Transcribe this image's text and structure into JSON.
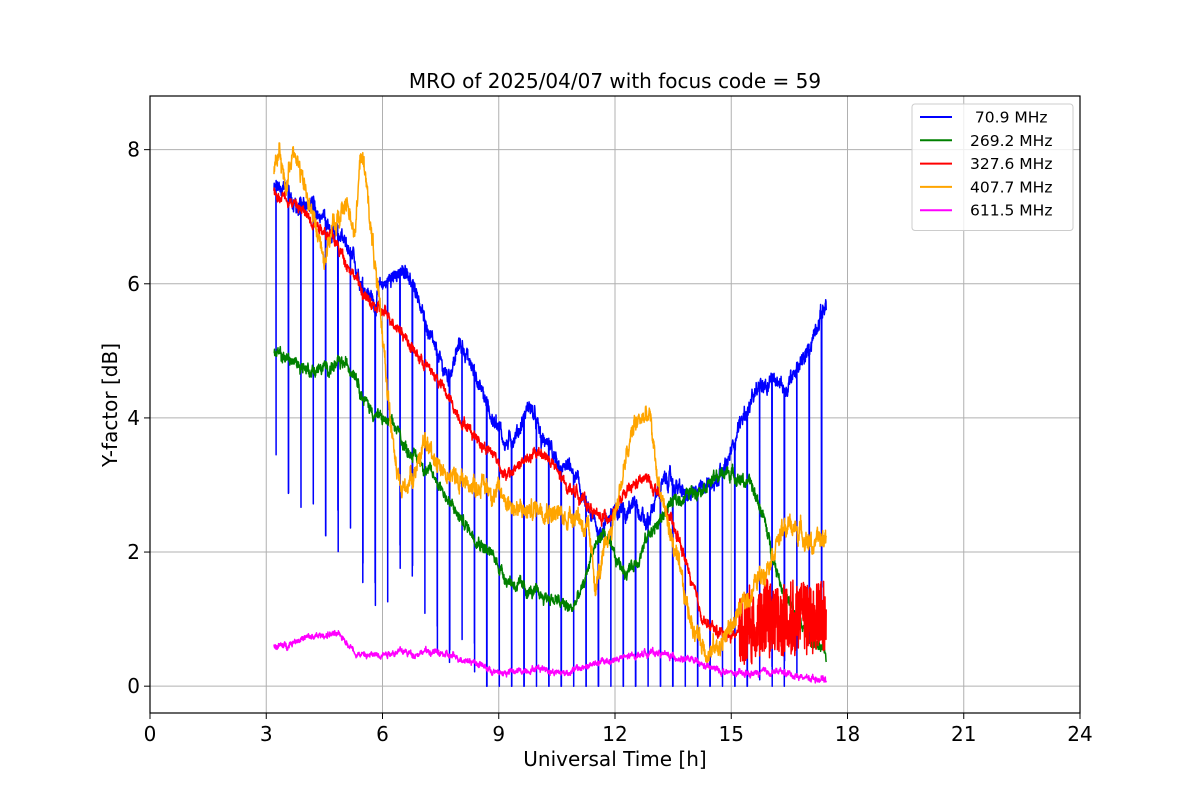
{
  "chart_data": {
    "type": "line",
    "title": "MRO of 2025/04/07 with focus code = 59",
    "xlabel": "Universal Time [h]",
    "ylabel": "Y-factor [dB]",
    "xlim": [
      0,
      24
    ],
    "ylim": [
      -0.4,
      8.8
    ],
    "xticks": [
      0,
      3,
      6,
      9,
      12,
      15,
      18,
      21,
      24
    ],
    "yticks": [
      0,
      2,
      4,
      6,
      8
    ],
    "grid": true,
    "legend_position": "top-right",
    "series": [
      {
        "name": " 70.9 MHz",
        "color": "#0000ff",
        "noise": 0.13,
        "dips": {
          "start": 3.25,
          "period": 0.32,
          "end": 17.45
        },
        "x": [
          3.2,
          3.4,
          3.6,
          3.8,
          4.0,
          4.3,
          4.6,
          4.9,
          5.2,
          5.5,
          5.8,
          6.0,
          6.3,
          6.6,
          6.9,
          7.1,
          7.4,
          7.7,
          8.0,
          8.3,
          8.6,
          8.9,
          9.2,
          9.5,
          9.8,
          10.1,
          10.4,
          10.7,
          11.0,
          11.3,
          11.6,
          11.9,
          12.2,
          12.5,
          12.8,
          13.1,
          13.4,
          13.7,
          14.0,
          14.3,
          14.6,
          14.9,
          15.2,
          15.5,
          15.8,
          16.1,
          16.4,
          16.7,
          17.0,
          17.2,
          17.45
        ],
        "y": [
          7.4,
          7.5,
          7.3,
          7.1,
          7.2,
          7.1,
          6.9,
          6.7,
          6.4,
          6.0,
          5.7,
          6.0,
          6.1,
          6.2,
          5.9,
          5.4,
          4.9,
          4.6,
          5.1,
          4.8,
          4.3,
          3.9,
          3.6,
          3.8,
          4.2,
          3.7,
          3.4,
          3.3,
          3.1,
          2.6,
          2.3,
          2.6,
          2.6,
          2.7,
          2.4,
          2.9,
          3.1,
          2.9,
          2.8,
          3.0,
          3.1,
          3.3,
          3.9,
          4.2,
          4.5,
          4.6,
          4.4,
          4.7,
          5.0,
          5.4,
          5.7
        ]
      },
      {
        "name": "269.2 MHz",
        "color": "#008000",
        "noise": 0.1,
        "x": [
          3.2,
          3.5,
          3.8,
          4.2,
          4.6,
          5.0,
          5.3,
          5.5,
          5.8,
          6.1,
          6.4,
          6.6,
          6.9,
          7.2,
          7.5,
          7.7,
          8.0,
          8.3,
          8.6,
          8.9,
          9.2,
          9.5,
          9.8,
          10.1,
          10.4,
          10.7,
          10.9,
          11.2,
          11.4,
          11.7,
          12.0,
          12.3,
          12.6,
          12.9,
          13.1,
          13.4,
          13.7,
          14.0,
          14.3,
          14.6,
          14.9,
          15.2,
          15.5,
          15.8,
          16.0,
          16.3,
          16.6,
          16.9,
          17.2,
          17.45
        ],
        "y": [
          4.95,
          4.9,
          4.8,
          4.7,
          4.75,
          4.8,
          4.7,
          4.3,
          4.05,
          3.95,
          3.8,
          3.55,
          3.4,
          3.2,
          3.0,
          2.75,
          2.5,
          2.3,
          2.1,
          1.9,
          1.6,
          1.5,
          1.4,
          1.35,
          1.3,
          1.2,
          1.15,
          1.5,
          2.0,
          2.3,
          1.9,
          1.7,
          1.9,
          2.3,
          2.4,
          2.7,
          2.8,
          2.9,
          3.0,
          3.1,
          3.2,
          3.1,
          3.0,
          2.6,
          2.1,
          1.5,
          1.1,
          0.8,
          0.6,
          0.45
        ]
      },
      {
        "name": "327.6 MHz",
        "color": "#ff0000",
        "noise": 0.09,
        "x": [
          3.2,
          3.5,
          3.8,
          4.1,
          4.4,
          4.7,
          5.0,
          5.3,
          5.6,
          5.9,
          6.2,
          6.5,
          6.8,
          7.1,
          7.4,
          7.7,
          8.0,
          8.3,
          8.6,
          8.9,
          9.2,
          9.5,
          9.8,
          10.1,
          10.4,
          10.7,
          11.0,
          11.3,
          11.6,
          11.9,
          12.2,
          12.5,
          12.8,
          13.1,
          13.4,
          13.7,
          14.0,
          14.2,
          14.4,
          14.7,
          15.0,
          15.3,
          15.6,
          15.9,
          16.2,
          16.5,
          16.8,
          17.1,
          17.45
        ],
        "y": [
          7.35,
          7.3,
          7.15,
          7.0,
          6.85,
          6.7,
          6.4,
          6.1,
          5.75,
          5.6,
          5.5,
          5.3,
          5.0,
          4.8,
          4.6,
          4.3,
          4.0,
          3.8,
          3.6,
          3.45,
          3.1,
          3.3,
          3.4,
          3.5,
          3.3,
          3.0,
          2.9,
          2.7,
          2.5,
          2.55,
          2.8,
          3.0,
          3.1,
          2.9,
          2.5,
          2.1,
          1.5,
          1.1,
          0.9,
          0.8,
          0.75,
          0.85,
          0.9,
          1.0,
          1.0,
          1.0,
          1.05,
          1.0,
          1.1
        ],
        "late_spread": {
          "from": 15.2,
          "amp": 0.55
        }
      },
      {
        "name": "407.7 MHz",
        "color": "#ffa500",
        "noise": 0.16,
        "x": [
          3.2,
          3.35,
          3.5,
          3.7,
          3.9,
          4.1,
          4.3,
          4.5,
          4.7,
          4.9,
          5.1,
          5.3,
          5.45,
          5.6,
          5.75,
          5.9,
          6.05,
          6.2,
          6.35,
          6.5,
          6.8,
          7.1,
          7.4,
          7.7,
          8.0,
          8.3,
          8.6,
          8.9,
          9.2,
          9.5,
          9.8,
          10.1,
          10.4,
          10.7,
          11.0,
          11.3,
          11.5,
          11.7,
          12.0,
          12.3,
          12.5,
          12.7,
          12.9,
          13.1,
          13.3,
          13.5,
          13.7,
          13.9,
          14.1,
          14.4,
          14.7,
          15.0,
          15.3,
          15.6,
          15.9,
          16.2,
          16.5,
          16.8,
          17.1,
          17.45
        ],
        "y": [
          7.7,
          7.9,
          7.4,
          8.1,
          7.6,
          7.2,
          6.8,
          6.4,
          6.8,
          7.0,
          7.2,
          6.8,
          8.0,
          7.4,
          6.6,
          5.7,
          5.0,
          4.0,
          3.2,
          2.9,
          3.2,
          3.6,
          3.4,
          3.1,
          3.1,
          3.0,
          3.0,
          2.9,
          2.8,
          2.6,
          2.6,
          2.7,
          2.6,
          2.5,
          2.6,
          2.3,
          1.5,
          1.9,
          2.6,
          3.4,
          3.9,
          4.0,
          4.0,
          3.1,
          2.6,
          2.1,
          1.6,
          1.1,
          0.8,
          0.5,
          0.6,
          0.9,
          1.2,
          1.5,
          1.8,
          2.2,
          2.4,
          2.3,
          2.1,
          2.2
        ]
      },
      {
        "name": "611.5 MHz",
        "color": "#ff00ff",
        "noise": 0.05,
        "x": [
          3.2,
          3.5,
          3.8,
          4.1,
          4.4,
          4.7,
          5.0,
          5.3,
          5.6,
          5.9,
          6.2,
          6.5,
          6.8,
          7.1,
          7.4,
          7.7,
          8.0,
          8.3,
          8.6,
          8.9,
          9.2,
          9.5,
          9.8,
          10.1,
          10.4,
          10.7,
          11.0,
          11.3,
          11.6,
          11.9,
          12.2,
          12.5,
          12.8,
          13.1,
          13.4,
          13.7,
          14.0,
          14.3,
          14.6,
          14.9,
          15.2,
          15.5,
          15.8,
          16.1,
          16.4,
          16.7,
          17.0,
          17.2,
          17.45
        ],
        "y": [
          0.6,
          0.6,
          0.7,
          0.72,
          0.75,
          0.78,
          0.72,
          0.5,
          0.45,
          0.48,
          0.5,
          0.52,
          0.48,
          0.52,
          0.5,
          0.45,
          0.42,
          0.38,
          0.3,
          0.2,
          0.2,
          0.22,
          0.25,
          0.28,
          0.22,
          0.2,
          0.25,
          0.3,
          0.35,
          0.38,
          0.42,
          0.45,
          0.5,
          0.5,
          0.45,
          0.42,
          0.38,
          0.3,
          0.25,
          0.2,
          0.18,
          0.18,
          0.2,
          0.22,
          0.2,
          0.15,
          0.12,
          0.12,
          0.1
        ]
      }
    ]
  }
}
